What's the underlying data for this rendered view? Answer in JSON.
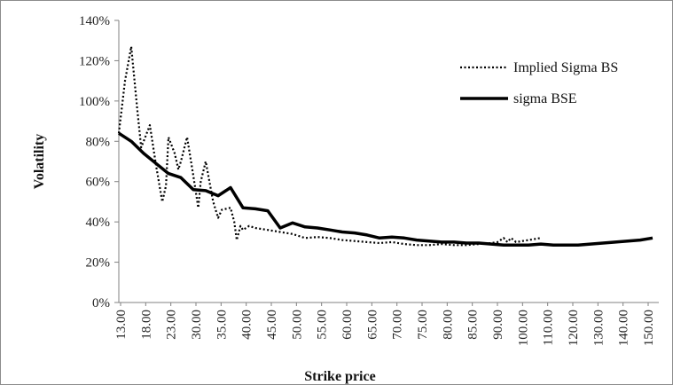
{
  "chart_data": {
    "type": "line",
    "xlabel": "Strike price",
    "ylabel": "Volatility",
    "ylim": [
      0,
      140
    ],
    "y_unit": "%",
    "y_ticks": [
      0,
      20,
      40,
      60,
      80,
      100,
      120,
      140
    ],
    "x_ticks": [
      "13.00",
      "18.00",
      "23.00",
      "30.00",
      "35.00",
      "40.00",
      "45.00",
      "50.00",
      "55.00",
      "60.00",
      "65.00",
      "70.00",
      "75.00",
      "80.00",
      "85.00",
      "90.00",
      "100.00",
      "110.00",
      "120.00",
      "130.00",
      "140.00",
      "150.00"
    ],
    "legend_position": "top-right",
    "grid": false,
    "series": [
      {
        "name": "Implied Sigma BS",
        "style": "dotted",
        "color": "#000000",
        "points": [
          [
            0,
            84
          ],
          [
            0.5,
            110
          ],
          [
            1,
            127
          ],
          [
            1.5,
            95
          ],
          [
            1.8,
            77
          ],
          [
            2,
            80
          ],
          [
            2.5,
            88
          ],
          [
            3,
            68
          ],
          [
            3.5,
            50
          ],
          [
            3.8,
            58
          ],
          [
            4,
            82
          ],
          [
            4.5,
            74
          ],
          [
            4.8,
            66
          ],
          [
            5,
            70
          ],
          [
            5.5,
            82
          ],
          [
            6,
            63
          ],
          [
            6.4,
            47
          ],
          [
            6.6,
            60
          ],
          [
            7,
            70
          ],
          [
            7.3,
            60
          ],
          [
            7.6,
            50
          ],
          [
            8,
            42
          ],
          [
            8.3,
            46
          ],
          [
            9,
            47
          ],
          [
            9.3,
            40
          ],
          [
            9.5,
            31
          ],
          [
            9.8,
            38
          ],
          [
            10,
            36
          ],
          [
            10.5,
            38
          ],
          [
            11,
            37
          ],
          [
            12,
            36
          ],
          [
            13,
            35
          ],
          [
            14,
            34
          ],
          [
            15,
            32
          ],
          [
            16,
            32.5
          ],
          [
            17,
            32
          ],
          [
            18,
            31
          ],
          [
            19,
            30.5
          ],
          [
            20,
            30
          ],
          [
            21,
            29.5
          ],
          [
            22,
            30
          ],
          [
            23,
            29
          ],
          [
            24,
            28.5
          ],
          [
            25,
            28.5
          ],
          [
            26,
            29
          ],
          [
            27,
            28.5
          ],
          [
            28,
            28.5
          ],
          [
            29,
            29
          ],
          [
            30,
            29.5
          ],
          [
            30.5,
            30
          ],
          [
            31,
            32
          ],
          [
            31.3,
            30
          ],
          [
            31.6,
            32
          ],
          [
            32,
            30
          ],
          [
            33,
            31
          ],
          [
            34,
            32
          ]
        ]
      },
      {
        "name": "sigma BSE",
        "style": "solid",
        "color": "#000000",
        "points": [
          [
            0,
            84
          ],
          [
            1,
            80
          ],
          [
            2,
            74
          ],
          [
            3,
            69
          ],
          [
            4,
            64
          ],
          [
            5,
            62
          ],
          [
            6,
            56
          ],
          [
            7,
            55.5
          ],
          [
            8,
            53
          ],
          [
            9,
            57
          ],
          [
            10,
            47
          ],
          [
            11,
            46.5
          ],
          [
            12,
            45.5
          ],
          [
            13,
            37
          ],
          [
            14,
            39.5
          ],
          [
            15,
            37.5
          ],
          [
            16,
            37
          ],
          [
            17,
            36
          ],
          [
            18,
            35
          ],
          [
            19,
            34.5
          ],
          [
            20,
            33.5
          ],
          [
            21,
            32
          ],
          [
            22,
            32.5
          ],
          [
            23,
            32
          ],
          [
            24,
            31
          ],
          [
            25,
            30.5
          ],
          [
            26,
            30
          ],
          [
            27,
            30
          ],
          [
            28,
            29.5
          ],
          [
            29,
            29.5
          ],
          [
            30,
            29
          ],
          [
            31,
            28.5
          ],
          [
            32,
            28.5
          ],
          [
            33,
            28.5
          ],
          [
            34,
            29
          ],
          [
            35,
            28.5
          ],
          [
            36,
            28.5
          ],
          [
            37,
            28.5
          ],
          [
            38,
            29
          ],
          [
            39,
            29.5
          ],
          [
            40,
            30
          ],
          [
            41,
            30.5
          ],
          [
            42,
            31
          ],
          [
            43,
            32
          ]
        ]
      }
    ]
  }
}
